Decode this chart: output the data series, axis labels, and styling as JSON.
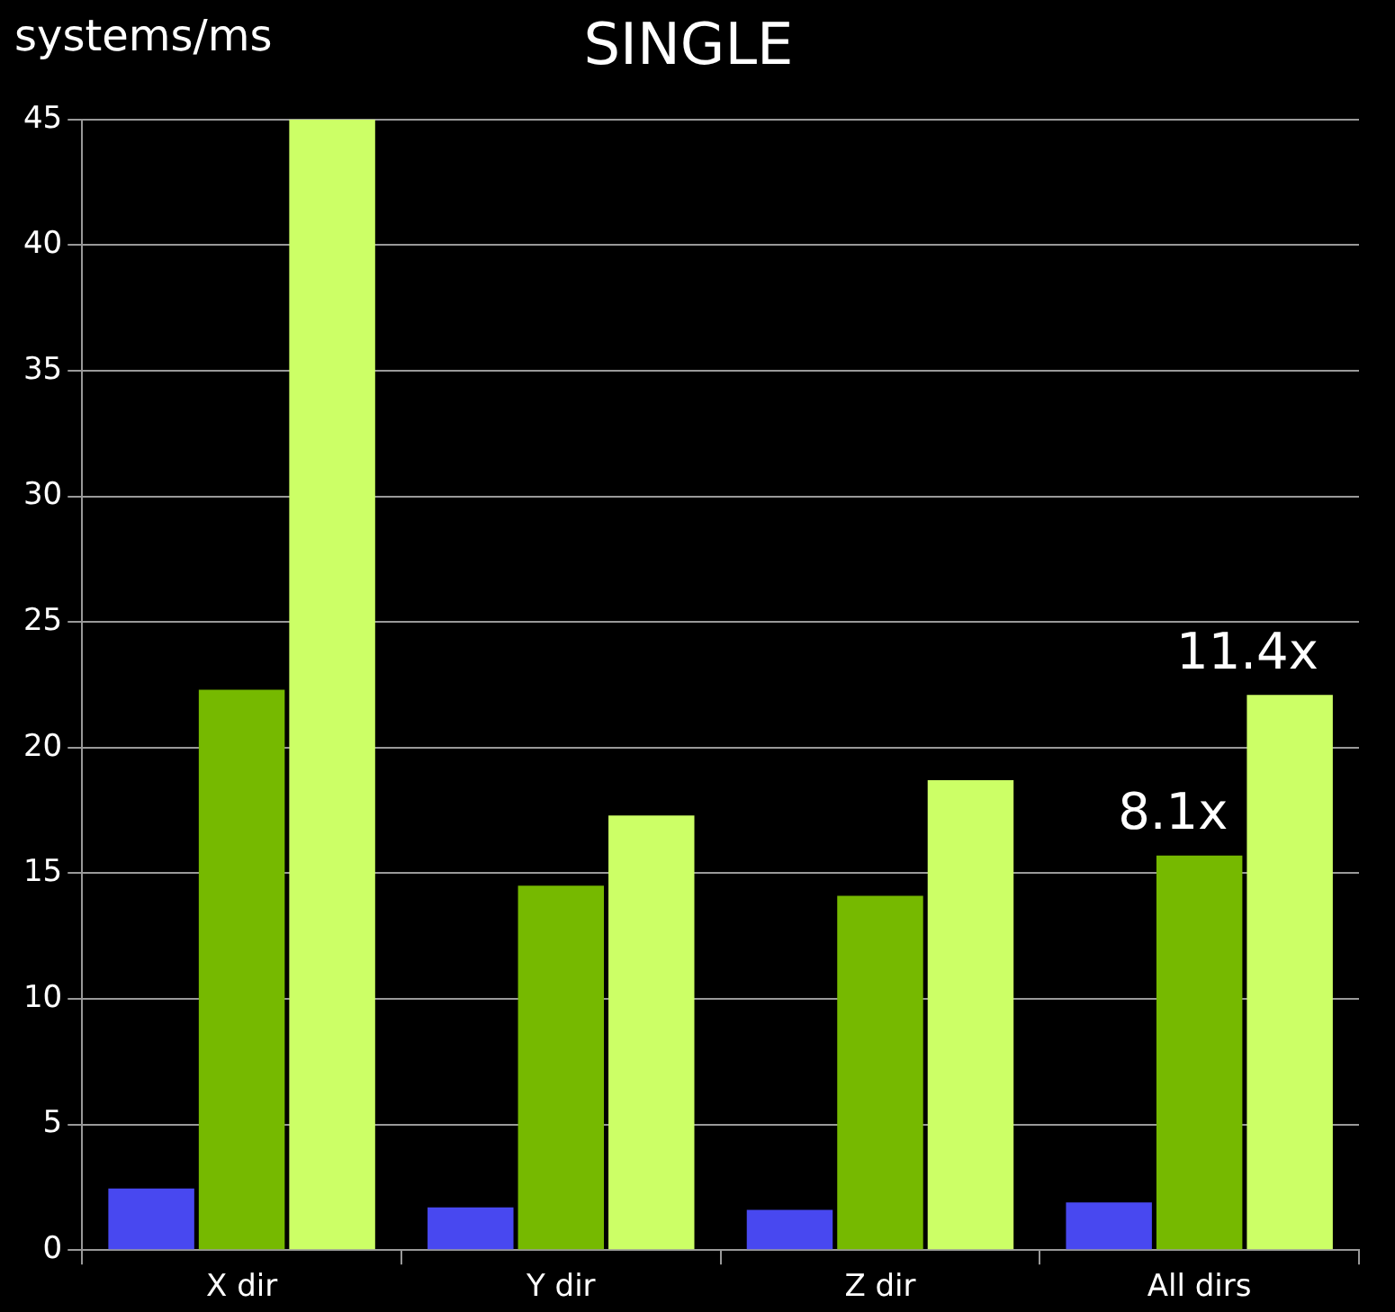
{
  "chart_data": {
    "type": "bar",
    "title": "SINGLE",
    "ylabel": "systems/ms",
    "categories": [
      "X dir",
      "Y dir",
      "Z dir",
      "All dirs"
    ],
    "series": [
      {
        "color": "#4848f0",
        "values": [
          2.45,
          1.7,
          1.6,
          1.9
        ]
      },
      {
        "color": "#76b900",
        "values": [
          22.3,
          14.5,
          14.1,
          15.7
        ]
      },
      {
        "color": "#ccff66",
        "values": [
          45,
          17.3,
          18.7,
          22.1
        ]
      }
    ],
    "ylim": [
      0,
      45
    ],
    "yticks": [
      0,
      5,
      10,
      15,
      20,
      25,
      30,
      35,
      40,
      45
    ],
    "grid": "y",
    "legend": false,
    "annotations": [
      "8.1x",
      "11.4x"
    ]
  }
}
